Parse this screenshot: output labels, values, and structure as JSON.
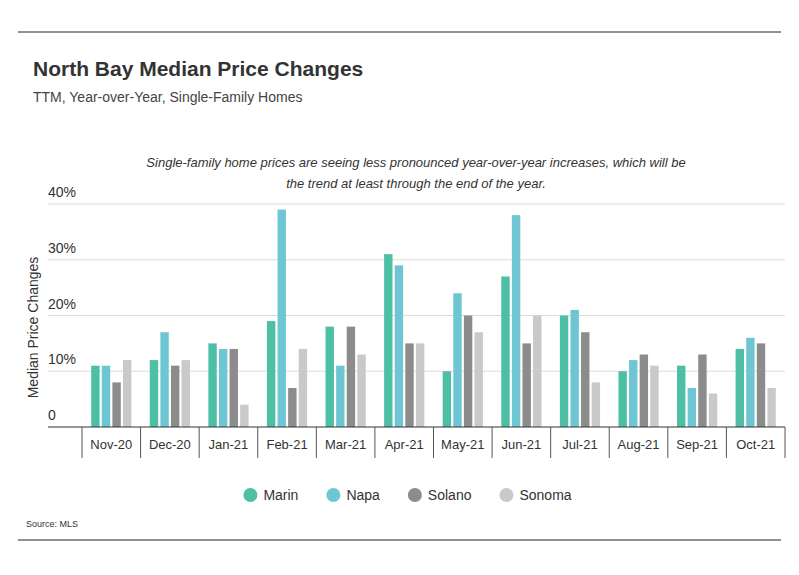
{
  "chart_data": {
    "type": "bar",
    "title": "North Bay Median Price Changes",
    "subtitle": "TTM, Year-over-Year, Single-Family Homes",
    "annotation": [
      "Single-family home prices are seeing less pronounced year-over-year increases, which will be",
      "the trend at least through the end of the year."
    ],
    "y_label": "Median Price Changes",
    "source": "Source: MLS",
    "categories": [
      "Nov-20",
      "Dec-20",
      "Jan-21",
      "Feb-21",
      "Mar-21",
      "Apr-21",
      "May-21",
      "Jun-21",
      "Jul-21",
      "Aug-21",
      "Sep-21",
      "Oct-21"
    ],
    "series": [
      {
        "name": "Marin",
        "color": "#4dbfa5",
        "values": [
          11,
          12,
          15,
          19,
          18,
          31,
          10,
          27,
          20,
          10,
          11,
          14
        ]
      },
      {
        "name": "Napa",
        "color": "#6ec6d2",
        "values": [
          11,
          17,
          14,
          39,
          11,
          29,
          24,
          38,
          21,
          12,
          7,
          16
        ]
      },
      {
        "name": "Solano",
        "color": "#8c8c8c",
        "values": [
          8,
          11,
          14,
          7,
          18,
          15,
          20,
          15,
          17,
          13,
          13,
          15
        ]
      },
      {
        "name": "Sonoma",
        "color": "#c9c9c9",
        "values": [
          12,
          12,
          4,
          14,
          13,
          15,
          17,
          20,
          8,
          11,
          6,
          7
        ]
      }
    ],
    "ylim": [
      0,
      40
    ],
    "yticks": [
      {
        "value": 40,
        "label": "40%"
      },
      {
        "value": 30,
        "label": "30%"
      },
      {
        "value": 20,
        "label": "20%"
      },
      {
        "value": 10,
        "label": "10%"
      },
      0
    ],
    "grid": true,
    "legend": "bottom"
  }
}
